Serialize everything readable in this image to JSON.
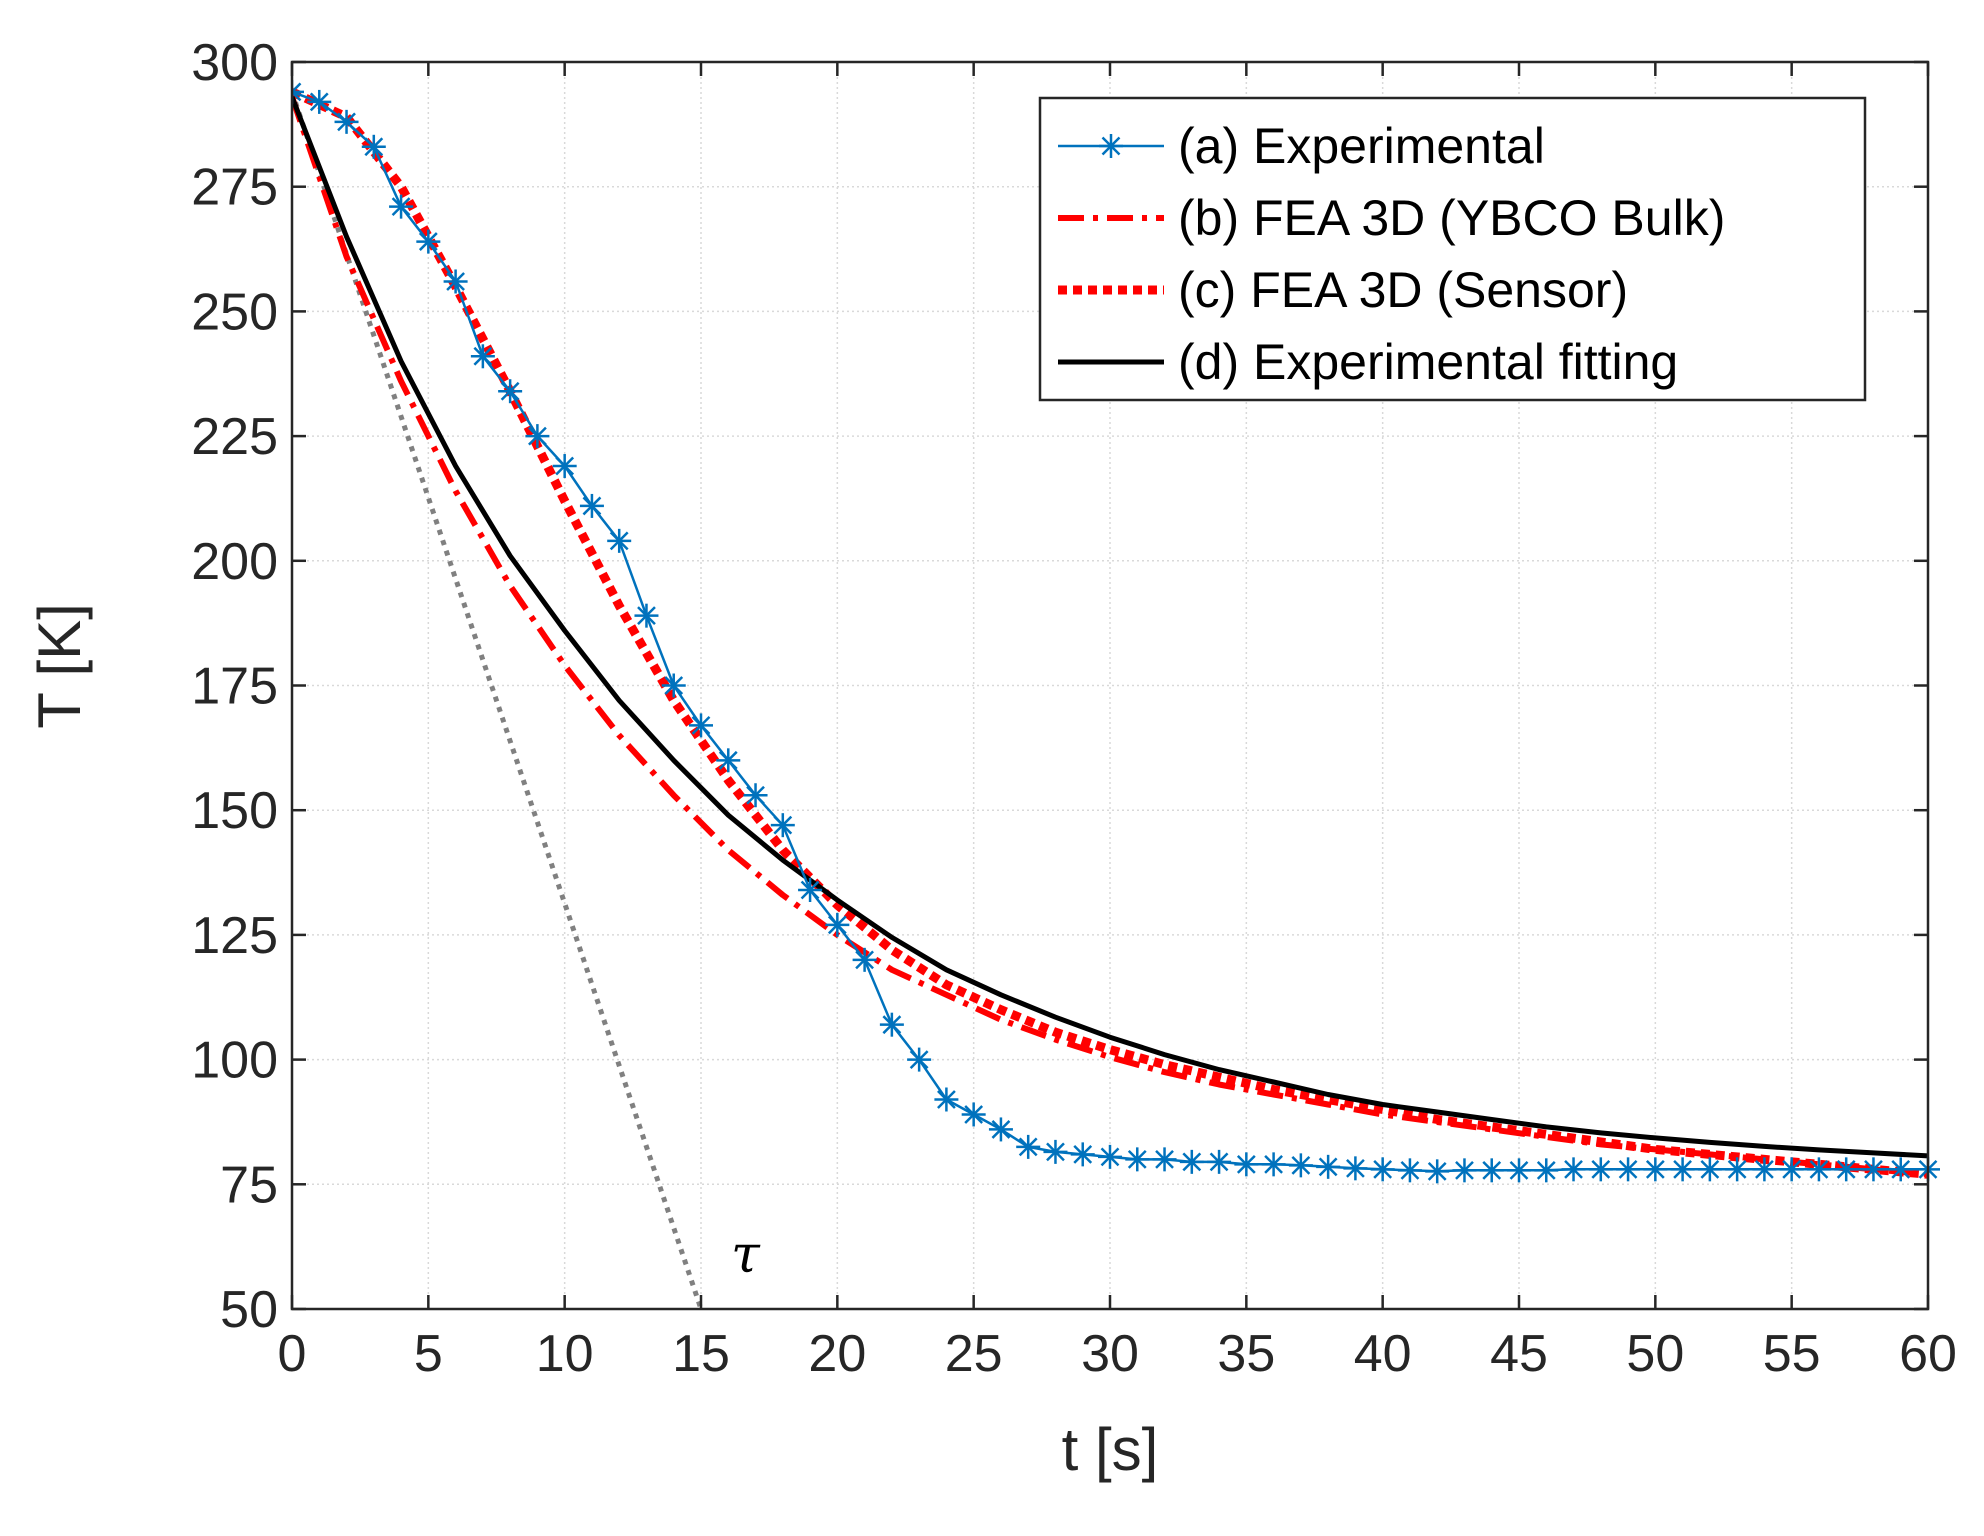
{
  "chart_data": {
    "type": "line",
    "title": "",
    "xlabel": "t [s]",
    "ylabel": "T [K]",
    "xlim": [
      0,
      60
    ],
    "ylim": [
      50,
      300
    ],
    "grid": true,
    "xticks": [
      0,
      5,
      10,
      15,
      20,
      25,
      30,
      35,
      40,
      45,
      50,
      55,
      60
    ],
    "xtick_labels": [
      "0",
      "5",
      "10",
      "15",
      "20",
      "25",
      "30",
      "35",
      "40",
      "45",
      "50",
      "55",
      "60"
    ],
    "yticks": [
      50,
      75,
      100,
      125,
      150,
      175,
      200,
      225,
      250,
      275,
      300
    ],
    "ytick_labels": [
      "50",
      "75",
      "100",
      "125",
      "150",
      "175",
      "200",
      "225",
      "250",
      "275",
      "300"
    ],
    "legend_position": "top-right",
    "series": [
      {
        "name": "(a) Experimental",
        "style": "solid-asterisk",
        "color": "#0072BD",
        "x": [
          0,
          1,
          2,
          3,
          4,
          5,
          6,
          7,
          8,
          9,
          10,
          11,
          12,
          13,
          14,
          15,
          16,
          17,
          18,
          19,
          20,
          21,
          22,
          23,
          24,
          25,
          26,
          27,
          28,
          29,
          30,
          31,
          32,
          33,
          34,
          35,
          36,
          37,
          38,
          39,
          40,
          41,
          42,
          43,
          44,
          45,
          46,
          47,
          48,
          49,
          50,
          51,
          52,
          53,
          54,
          55,
          56,
          57,
          58,
          59,
          60
        ],
        "y": [
          294,
          292,
          288,
          283,
          271,
          264,
          256,
          241,
          234,
          225,
          219,
          211,
          204,
          189,
          175,
          167,
          160,
          153,
          147,
          134,
          127,
          120,
          107,
          100,
          92,
          89,
          86,
          82.5,
          81.5,
          81,
          80.5,
          80,
          80,
          79.5,
          79.5,
          79,
          79,
          78.8,
          78.5,
          78.2,
          78,
          77.8,
          77.6,
          77.8,
          77.8,
          77.8,
          77.8,
          78,
          78,
          78,
          78,
          78,
          78,
          78,
          78,
          78,
          78,
          78,
          78,
          78,
          78
        ]
      },
      {
        "name": "(b) FEA 3D (YBCO Bulk)",
        "style": "dash-dot",
        "color": "#FF0000",
        "x": [
          0,
          2,
          4,
          6,
          8,
          10,
          12,
          14,
          16,
          18,
          20,
          22,
          24,
          26,
          28,
          30,
          32,
          34,
          36,
          38,
          40,
          42,
          44,
          46,
          48,
          50,
          52,
          54,
          56,
          58,
          60
        ],
        "y": [
          293,
          261,
          236,
          214,
          195,
          179,
          165,
          153,
          142,
          133,
          125,
          118,
          113,
          108,
          104,
          100.5,
          97.5,
          95,
          93,
          91,
          89,
          87.5,
          86,
          84.5,
          83,
          82,
          81,
          80,
          79,
          78,
          77
        ]
      },
      {
        "name": "(c) FEA 3D (Sensor)",
        "style": "dotted",
        "color": "#FF0000",
        "x": [
          0,
          2,
          4,
          6,
          8,
          10,
          12,
          14,
          16,
          18,
          20,
          22,
          24,
          26,
          28,
          30,
          32,
          34,
          36,
          38,
          40,
          42,
          44,
          46,
          48,
          50,
          52,
          54,
          56,
          58,
          60
        ],
        "y": [
          294,
          289,
          275,
          255,
          234,
          212,
          191,
          172,
          156,
          142,
          131,
          122,
          115,
          110,
          105.5,
          102,
          99,
          96.5,
          94,
          92,
          90,
          88,
          86.5,
          85,
          83.5,
          82,
          81,
          80,
          79,
          78,
          77
        ]
      },
      {
        "name": "(d) Experimental fitting",
        "style": "solid",
        "color": "#000000",
        "x": [
          0,
          2,
          4,
          6,
          8,
          10,
          12,
          14,
          16,
          18,
          20,
          22,
          24,
          26,
          28,
          30,
          32,
          34,
          36,
          38,
          40,
          42,
          44,
          46,
          48,
          50,
          52,
          54,
          56,
          58,
          60
        ],
        "y": [
          293,
          265,
          240,
          219,
          201,
          186,
          172,
          160,
          149,
          140,
          132,
          124.5,
          118,
          113,
          108.5,
          104.5,
          101,
          98,
          95.5,
          93,
          91,
          89.5,
          88,
          86.5,
          85.3,
          84.3,
          83.4,
          82.6,
          81.9,
          81.3,
          80.7
        ]
      },
      {
        "name": "tangent",
        "style": "dotted",
        "color": "#808080",
        "legend": false,
        "x": [
          0,
          15
        ],
        "y": [
          294,
          50
        ]
      }
    ],
    "annotations": [
      {
        "text": "τ",
        "x": 16.1,
        "y": 61
      }
    ]
  }
}
